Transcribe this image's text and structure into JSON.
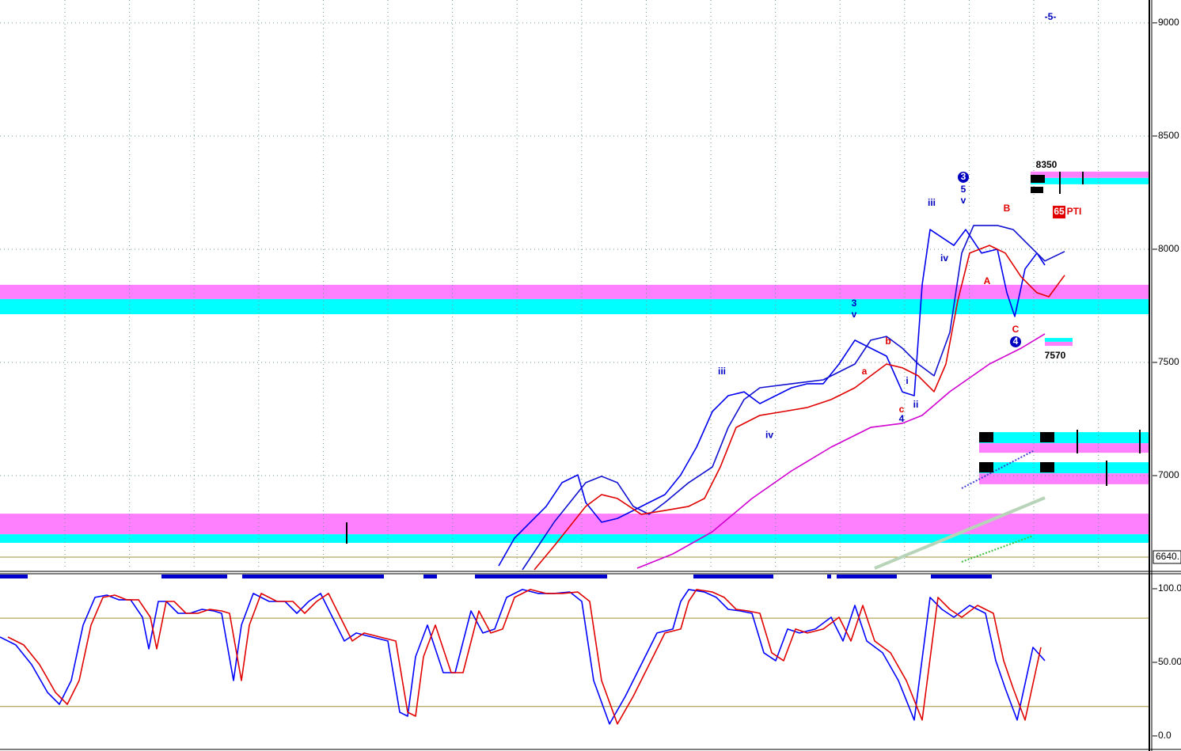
{
  "chart_data": [
    {
      "type": "line",
      "xlim": [
        0,
        145.2
      ],
      "ylim": [
        6584,
        9101
      ],
      "yticks": [
        7000,
        7500,
        8000,
        8500,
        9000
      ],
      "grid": true,
      "series": [
        {
          "color": "#0000ee",
          "x": [
            63,
            65,
            67,
            69,
            71,
            73,
            74,
            76,
            78,
            80,
            82,
            84,
            86,
            88,
            90,
            92,
            94,
            96,
            98,
            100,
            102,
            104,
            106,
            108,
            110,
            112,
            114,
            115.5,
            116.5,
            117.5,
            119,
            120.5,
            122,
            124,
            126,
            127.2,
            128.2,
            129.5,
            131,
            132
          ],
          "values": [
            6601,
            6724,
            6794,
            6864,
            6969,
            7003,
            6881,
            6794,
            6811,
            6846,
            6881,
            6916,
            7003,
            7126,
            7283,
            7353,
            7370,
            7318,
            7353,
            7388,
            7406,
            7406,
            7493,
            7598,
            7563,
            7528,
            7370,
            7353,
            7843,
            8087,
            8052,
            8017,
            8087,
            7983,
            8000,
            7808,
            7703,
            7913,
            7983,
            7930
          ]
        },
        {
          "color": "#1010d0",
          "x": [
            66,
            70,
            74,
            76,
            78,
            80,
            82,
            84,
            87,
            90,
            92,
            94,
            96,
            100,
            104,
            108,
            110,
            112,
            114,
            116,
            118,
            120,
            121.5,
            123,
            126,
            128,
            130,
            132,
            134.5
          ],
          "values": [
            6584,
            6794,
            6969,
            6997,
            6969,
            6864,
            6829,
            6881,
            6969,
            7038,
            7213,
            7336,
            7388,
            7406,
            7423,
            7493,
            7598,
            7615,
            7563,
            7493,
            7441,
            7633,
            7983,
            8105,
            8105,
            8087,
            8017,
            7948,
            7990
          ]
        },
        {
          "color": "#e00000",
          "x": [
            67.5,
            70,
            74,
            76,
            78,
            81,
            84,
            87,
            89,
            91,
            93,
            96,
            99,
            102,
            105,
            108,
            110,
            112,
            114,
            116,
            118,
            119.5,
            121,
            122.5,
            125,
            127,
            129,
            131,
            132.5,
            134.5
          ],
          "values": [
            6584,
            6689,
            6864,
            6916,
            6899,
            6829,
            6846,
            6864,
            6899,
            7038,
            7213,
            7266,
            7283,
            7301,
            7336,
            7388,
            7441,
            7493,
            7476,
            7441,
            7371,
            7493,
            7773,
            7983,
            8017,
            7983,
            7878,
            7808,
            7790,
            7885
          ]
        },
        {
          "color": "#d000d0",
          "x": [
            80.5,
            85,
            90,
            95,
            100,
            105,
            110,
            114,
            116.5,
            120,
            125,
            129,
            132
          ],
          "values": [
            6591,
            6654,
            6752,
            6899,
            7021,
            7126,
            7213,
            7231,
            7266,
            7371,
            7493,
            7563,
            7626
          ]
        }
      ],
      "zones": [
        {
          "from": 7780,
          "to": 7843,
          "color": "#ff80ff"
        },
        {
          "from": 7713,
          "to": 7780,
          "color": "#00ffff"
        },
        {
          "from": 6741,
          "to": 6832,
          "color": "#ff80ff"
        },
        {
          "from": 6703,
          "to": 6741,
          "color": "#00ffff"
        },
        {
          "from": 8315,
          "to": 8343,
          "color": "#ff80ff",
          "x": [
            130.2,
            145.2
          ]
        },
        {
          "from": 8287,
          "to": 8315,
          "color": "#00ffff",
          "x": [
            130.2,
            145.2
          ]
        },
        {
          "from": 7591,
          "to": 7608,
          "color": "#00ffff",
          "x": [
            132,
            135.5
          ]
        },
        {
          "from": 7573,
          "to": 7591,
          "color": "#ff80ff",
          "x": [
            132,
            135.5
          ]
        },
        {
          "from": 7143,
          "to": 7192,
          "color": "#00ffff",
          "x": [
            123.7,
            145.2
          ]
        },
        {
          "from": 7101,
          "to": 7143,
          "color": "#ff80ff",
          "x": [
            123.7,
            145.2
          ]
        },
        {
          "from": 7010,
          "to": 7059,
          "color": "#00ffff",
          "x": [
            123.7,
            145.2
          ]
        },
        {
          "from": 6962,
          "to": 7010,
          "color": "#ff80ff",
          "x": [
            123.7,
            145.2
          ]
        }
      ],
      "levels": [
        6640
      ],
      "level_color": "#a09030",
      "price_marker": {
        "value": 6640,
        "label": "6640."
      },
      "annotations": [
        {
          "text": "-5-",
          "x": 132.7,
          "y": 9024,
          "color": "#0000c0"
        },
        {
          "text": "8350",
          "x": 132.2,
          "y": 8371,
          "color": "#000000"
        },
        {
          "text": "65",
          "x": 133.8,
          "y": 8164,
          "color": "#ffffff",
          "style": "box"
        },
        {
          "text": "PTI",
          "x": 135.7,
          "y": 8164,
          "color": "#e00000"
        },
        {
          "text": "7570",
          "x": 133.3,
          "y": 7528,
          "color": "#000000"
        },
        {
          "text": "3",
          "x": 107.9,
          "y": 7759,
          "color": "#0000c0"
        },
        {
          "text": "v",
          "x": 107.9,
          "y": 7710,
          "color": "#0000c0"
        },
        {
          "text": "iii",
          "x": 91.2,
          "y": 7458,
          "color": "#0000c0"
        },
        {
          "text": "iv",
          "x": 97.2,
          "y": 7178,
          "color": "#0000c0"
        },
        {
          "text": "a",
          "x": 109.2,
          "y": 7458,
          "color": "#e00000"
        },
        {
          "text": "b",
          "x": 112.2,
          "y": 7591,
          "color": "#e00000"
        },
        {
          "text": "c",
          "x": 113.9,
          "y": 7290,
          "color": "#e00000"
        },
        {
          "text": "4",
          "x": 113.9,
          "y": 7248,
          "color": "#0000c0"
        },
        {
          "text": "i",
          "x": 114.6,
          "y": 7416,
          "color": "#0000c0"
        },
        {
          "text": "ii",
          "x": 115.7,
          "y": 7311,
          "color": "#0000c0"
        },
        {
          "text": "iii",
          "x": 117.7,
          "y": 8203,
          "color": "#0000c0"
        },
        {
          "text": "iv",
          "x": 119.3,
          "y": 7958,
          "color": "#0000c0"
        },
        {
          "text": "3",
          "x": 121.7,
          "y": 8318,
          "color": "#ffffff",
          "style": "circle"
        },
        {
          "text": "5",
          "x": 121.7,
          "y": 8262,
          "color": "#0000c0"
        },
        {
          "text": "v",
          "x": 121.7,
          "y": 8213,
          "color": "#0000c0"
        },
        {
          "text": "B",
          "x": 127.2,
          "y": 8178,
          "color": "#e00000"
        },
        {
          "text": "A",
          "x": 124.7,
          "y": 7857,
          "color": "#e00000"
        },
        {
          "text": "C",
          "x": 128.3,
          "y": 7643,
          "color": "#e00000"
        },
        {
          "text": "4",
          "x": 128.3,
          "y": 7591,
          "color": "#ffffff",
          "style": "circle"
        }
      ]
    },
    {
      "type": "line",
      "xlim": [
        0,
        145.2
      ],
      "ylim": [
        -8.1,
        110.2
      ],
      "yticks": [
        {
          "value": 100,
          "label": "100.0"
        },
        {
          "value": 50,
          "label": "50.00"
        },
        {
          "value": 0,
          "label": "0.0"
        }
      ],
      "levels": [
        80,
        20
      ],
      "level_color": "#a09030",
      "series": [
        {
          "color": "#0000ff",
          "x": [
            0,
            2,
            4,
            6,
            7.5,
            9,
            10.5,
            12,
            13.5,
            15,
            16.5,
            18,
            18.8,
            20,
            21,
            22.5,
            24,
            25.5,
            27,
            28,
            29.5,
            30.5,
            32,
            34,
            36,
            37.5,
            39,
            40.5,
            42,
            43.5,
            45,
            47,
            49,
            50.5,
            51.5,
            52.5,
            54,
            56,
            57.5,
            59.5,
            61,
            62.5,
            64,
            66,
            68,
            70,
            72,
            73.5,
            75,
            77,
            79,
            81,
            83,
            85,
            86,
            87,
            89,
            90.5,
            92,
            93.5,
            95,
            96.5,
            98,
            99.5,
            101,
            103,
            105,
            106.5,
            108,
            109.5,
            111.5,
            113.5,
            115.5,
            117.5,
            119,
            120.5,
            122.5,
            124.5,
            125.8,
            127,
            128.5,
            130.5,
            132
          ],
          "values": [
            67.2,
            61.8,
            48.4,
            29.6,
            21.5,
            37.6,
            75.3,
            94.1,
            95.7,
            92.5,
            92.5,
            80.6,
            59.1,
            91.4,
            91.4,
            83.3,
            83.3,
            86.0,
            84.9,
            83.3,
            37.6,
            75.3,
            96.8,
            91.4,
            91.4,
            83.3,
            91.4,
            96.8,
            80.6,
            64.5,
            69.9,
            67.2,
            64.5,
            16.1,
            13.4,
            53.8,
            75.3,
            43.0,
            43.0,
            84.9,
            69.9,
            72.6,
            94.1,
            99.5,
            96.8,
            96.8,
            97.8,
            91.4,
            37.6,
            8.1,
            26.9,
            48.4,
            69.9,
            72.6,
            91.4,
            99.5,
            97.8,
            94.1,
            86.0,
            84.9,
            83.3,
            56.5,
            51.1,
            72.6,
            69.9,
            72.6,
            80.6,
            64.5,
            88.7,
            64.5,
            56.5,
            37.6,
            10.8,
            94.1,
            86.0,
            80.6,
            88.7,
            83.3,
            51.1,
            32.3,
            10.8,
            60.2,
            51.1
          ]
        },
        {
          "color": "#e00000",
          "x": [
            1,
            3,
            5,
            7,
            8.5,
            10,
            11.5,
            13,
            14.5,
            16,
            17.5,
            19,
            19.8,
            21,
            22,
            23.5,
            25,
            26.5,
            28,
            29,
            30.5,
            31.5,
            33,
            35,
            37,
            38.5,
            40,
            41.5,
            43,
            44.5,
            46,
            48,
            50,
            51.5,
            52.5,
            53.5,
            55,
            57,
            58.5,
            60.5,
            62,
            63.5,
            65,
            67,
            69,
            71,
            73,
            74.5,
            76,
            78,
            80,
            82,
            84,
            86,
            87,
            88,
            90,
            91.5,
            93,
            94.5,
            96,
            97.5,
            99,
            100.5,
            102,
            104,
            106,
            107.5,
            109,
            110.5,
            112.5,
            114.5,
            116.5,
            118.5,
            120,
            121.5,
            123.5,
            125.5,
            126.8,
            128,
            129.5,
            131.5
          ],
          "values": [
            67.2,
            61.8,
            48.4,
            29.6,
            21.5,
            37.6,
            75.3,
            94.1,
            95.7,
            92.5,
            92.5,
            80.6,
            59.1,
            91.4,
            91.4,
            83.3,
            83.3,
            86.0,
            84.9,
            83.3,
            37.6,
            75.3,
            96.8,
            91.4,
            91.4,
            83.3,
            91.4,
            96.8,
            80.6,
            64.5,
            69.9,
            67.2,
            64.5,
            16.1,
            13.4,
            53.8,
            75.3,
            43.0,
            43.0,
            84.9,
            69.9,
            72.6,
            94.1,
            99.5,
            96.8,
            96.8,
            97.8,
            91.4,
            37.6,
            8.1,
            26.9,
            48.4,
            69.9,
            72.6,
            91.4,
            99.5,
            97.8,
            94.1,
            86.0,
            84.9,
            83.3,
            56.5,
            51.1,
            72.6,
            69.9,
            72.6,
            80.6,
            64.5,
            88.7,
            64.5,
            56.5,
            37.6,
            10.8,
            94.1,
            86.0,
            80.6,
            88.7,
            83.3,
            51.1,
            32.3,
            10.8,
            60.2
          ]
        }
      ]
    }
  ]
}
